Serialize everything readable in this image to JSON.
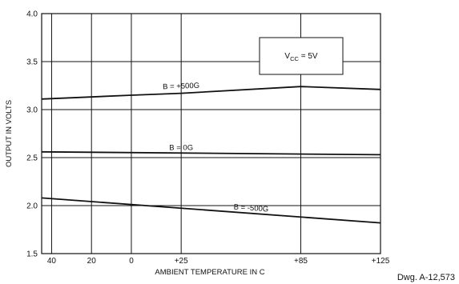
{
  "chart_data": {
    "type": "line",
    "ylabel": "OUTPUT IN VOLTS",
    "xlabel": "AMBIENT TEMPERATURE IN C",
    "x_tick_labels": [
      "40",
      "20",
      "0",
      "+25",
      "+85",
      "+125"
    ],
    "x_tick_values": [
      -40,
      -20,
      0,
      25,
      85,
      125
    ],
    "y_tick_labels": [
      "1.5",
      "2.0",
      "2.5",
      "3.0",
      "3.5",
      "4.0"
    ],
    "y_tick_values": [
      1.5,
      2.0,
      2.5,
      3.0,
      3.5,
      4.0
    ],
    "xlim": [
      -45,
      125
    ],
    "ylim": [
      1.5,
      4.0
    ],
    "grid": true,
    "annotation": "VCC = 5V",
    "annotation_parts": {
      "main": "V",
      "sub": "CC",
      "rest": " = 5V"
    },
    "series": [
      {
        "name": "B = +500G",
        "x": [
          -45,
          0,
          25,
          85,
          125
        ],
        "y": [
          3.11,
          3.15,
          3.17,
          3.24,
          3.21
        ]
      },
      {
        "name": "B = 0G",
        "x": [
          -45,
          125
        ],
        "y": [
          2.56,
          2.53
        ]
      },
      {
        "name": "B = -500G",
        "x": [
          -45,
          125
        ],
        "y": [
          2.08,
          1.82
        ]
      }
    ]
  },
  "footer": {
    "drawing_number": "Dwg. A-12,573"
  }
}
